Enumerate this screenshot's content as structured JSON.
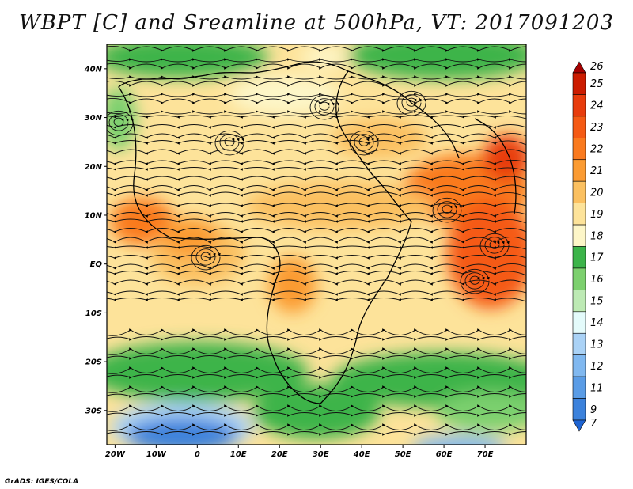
{
  "title": "WBPT [C] and Sreamline at 500hPa, VT: 2017091203",
  "credit": "GrADS: IGES/COLA",
  "map": {
    "lat_range": [
      -37,
      45
    ],
    "lon_range": [
      -22,
      80
    ],
    "lat_ticks": [
      {
        "value": 40,
        "label": "40N"
      },
      {
        "value": 30,
        "label": "30N"
      },
      {
        "value": 20,
        "label": "20N"
      },
      {
        "value": 10,
        "label": "10N"
      },
      {
        "value": 0,
        "label": "EQ"
      },
      {
        "value": -10,
        "label": "10S"
      },
      {
        "value": -20,
        "label": "20S"
      },
      {
        "value": -30,
        "label": "30S"
      }
    ],
    "lon_ticks": [
      {
        "value": -20,
        "label": "20W"
      },
      {
        "value": -10,
        "label": "10W"
      },
      {
        "value": 0,
        "label": "0"
      },
      {
        "value": 10,
        "label": "10E"
      },
      {
        "value": 20,
        "label": "20E"
      },
      {
        "value": 30,
        "label": "30E"
      },
      {
        "value": 40,
        "label": "40E"
      },
      {
        "value": 50,
        "label": "50E"
      },
      {
        "value": 60,
        "label": "60E"
      },
      {
        "value": 70,
        "label": "70E"
      }
    ]
  },
  "colorbar": {
    "levels": [
      {
        "label": "26",
        "color": "#a50000"
      },
      {
        "label": "25",
        "color": "#cc1c00"
      },
      {
        "label": "24",
        "color": "#e83c0c"
      },
      {
        "label": "23",
        "color": "#f55a14"
      },
      {
        "label": "22",
        "color": "#fa7a1e"
      },
      {
        "label": "21",
        "color": "#fb9b32"
      },
      {
        "label": "20",
        "color": "#fbc060"
      },
      {
        "label": "19",
        "color": "#fde39a"
      },
      {
        "label": "18",
        "color": "#fdf6c8"
      },
      {
        "label": "17",
        "color": "#3cb44a"
      },
      {
        "label": "16",
        "color": "#7cd06e"
      },
      {
        "label": "15",
        "color": "#bdeab4"
      },
      {
        "label": "14",
        "color": "#e4fbfb"
      },
      {
        "label": "13",
        "color": "#aad2f6"
      },
      {
        "label": "12",
        "color": "#80b8f0"
      },
      {
        "label": "11",
        "color": "#5a9ce6"
      },
      {
        "label": "9",
        "color": "#3c82dc"
      },
      {
        "label": "7",
        "color": "#1e64d2"
      }
    ]
  }
}
